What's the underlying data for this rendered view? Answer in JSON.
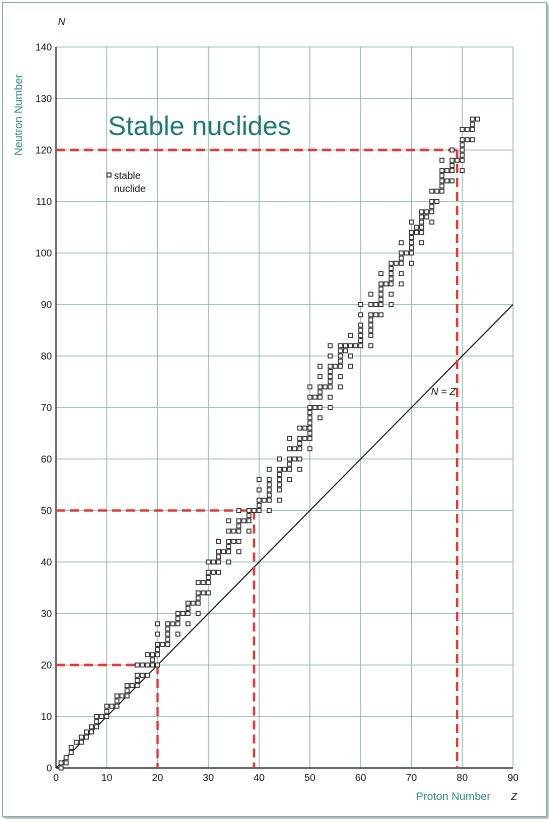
{
  "chart_data": {
    "type": "scatter",
    "title": "Stable nuclides",
    "xlabel": "Proton Number",
    "ylabel": "Neutron Number",
    "x_axis_letter": "Z",
    "y_axis_letter": "N",
    "xlim": [
      0,
      90
    ],
    "ylim": [
      0,
      140
    ],
    "x_ticks": [
      "0",
      "10",
      "20",
      "30",
      "40",
      "50",
      "60",
      "70",
      "80",
      "90"
    ],
    "y_ticks": [
      "0",
      "10",
      "20",
      "30",
      "40",
      "50",
      "60",
      "70",
      "80",
      "90",
      "100",
      "110",
      "120",
      "130",
      "140"
    ],
    "grid": true,
    "legend": {
      "label_line1": "stable",
      "label_line2": "nuclide",
      "marker": "open-square",
      "placement": "top-left"
    },
    "reference_line": {
      "label": "N = Z",
      "from": [
        0,
        0
      ],
      "to": [
        90,
        90
      ]
    },
    "magic_guides": [
      {
        "z": 20,
        "n": 20
      },
      {
        "z": 39,
        "n": 50
      },
      {
        "z": 79,
        "n": 120
      }
    ],
    "accent_colors": {
      "guide": "#e53935",
      "title": "#1d7a73",
      "axis_title": "#2e8b83",
      "grid": "#7fb3ad"
    },
    "series": [
      {
        "marker": "open-square",
        "points": [
          [
            1,
            0
          ],
          [
            1,
            1
          ],
          [
            2,
            1
          ],
          [
            2,
            2
          ],
          [
            3,
            3
          ],
          [
            3,
            4
          ],
          [
            4,
            5
          ],
          [
            5,
            5
          ],
          [
            5,
            6
          ],
          [
            6,
            6
          ],
          [
            6,
            7
          ],
          [
            7,
            7
          ],
          [
            7,
            8
          ],
          [
            8,
            8
          ],
          [
            8,
            9
          ],
          [
            8,
            10
          ],
          [
            9,
            10
          ],
          [
            10,
            10
          ],
          [
            10,
            11
          ],
          [
            10,
            12
          ],
          [
            11,
            12
          ],
          [
            12,
            12
          ],
          [
            12,
            13
          ],
          [
            12,
            14
          ],
          [
            13,
            14
          ],
          [
            14,
            14
          ],
          [
            14,
            15
          ],
          [
            14,
            16
          ],
          [
            15,
            16
          ],
          [
            16,
            16
          ],
          [
            16,
            17
          ],
          [
            16,
            18
          ],
          [
            16,
            20
          ],
          [
            17,
            18
          ],
          [
            17,
            20
          ],
          [
            18,
            18
          ],
          [
            18,
            20
          ],
          [
            18,
            22
          ],
          [
            19,
            20
          ],
          [
            19,
            21
          ],
          [
            19,
            22
          ],
          [
            20,
            20
          ],
          [
            20,
            22
          ],
          [
            20,
            23
          ],
          [
            20,
            24
          ],
          [
            20,
            26
          ],
          [
            20,
            28
          ],
          [
            21,
            24
          ],
          [
            22,
            24
          ],
          [
            22,
            25
          ],
          [
            22,
            26
          ],
          [
            22,
            27
          ],
          [
            22,
            28
          ],
          [
            23,
            28
          ],
          [
            24,
            26
          ],
          [
            24,
            28
          ],
          [
            24,
            29
          ],
          [
            24,
            30
          ],
          [
            25,
            30
          ],
          [
            26,
            28
          ],
          [
            26,
            30
          ],
          [
            26,
            31
          ],
          [
            26,
            32
          ],
          [
            27,
            32
          ],
          [
            28,
            30
          ],
          [
            28,
            32
          ],
          [
            28,
            33
          ],
          [
            28,
            34
          ],
          [
            28,
            36
          ],
          [
            29,
            34
          ],
          [
            29,
            36
          ],
          [
            30,
            34
          ],
          [
            30,
            36
          ],
          [
            30,
            37
          ],
          [
            30,
            38
          ],
          [
            30,
            40
          ],
          [
            31,
            38
          ],
          [
            31,
            40
          ],
          [
            32,
            38
          ],
          [
            32,
            40
          ],
          [
            32,
            41
          ],
          [
            32,
            42
          ],
          [
            32,
            44
          ],
          [
            33,
            42
          ],
          [
            34,
            40
          ],
          [
            34,
            42
          ],
          [
            34,
            43
          ],
          [
            34,
            44
          ],
          [
            34,
            46
          ],
          [
            34,
            48
          ],
          [
            35,
            44
          ],
          [
            35,
            46
          ],
          [
            36,
            42
          ],
          [
            36,
            44
          ],
          [
            36,
            46
          ],
          [
            36,
            47
          ],
          [
            36,
            48
          ],
          [
            36,
            50
          ],
          [
            37,
            48
          ],
          [
            38,
            46
          ],
          [
            38,
            48
          ],
          [
            38,
            49
          ],
          [
            38,
            50
          ],
          [
            39,
            50
          ],
          [
            40,
            50
          ],
          [
            40,
            51
          ],
          [
            40,
            52
          ],
          [
            40,
            54
          ],
          [
            40,
            56
          ],
          [
            41,
            52
          ],
          [
            42,
            50
          ],
          [
            42,
            52
          ],
          [
            42,
            53
          ],
          [
            42,
            54
          ],
          [
            42,
            55
          ],
          [
            42,
            56
          ],
          [
            42,
            58
          ],
          [
            44,
            52
          ],
          [
            44,
            54
          ],
          [
            44,
            55
          ],
          [
            44,
            56
          ],
          [
            44,
            57
          ],
          [
            44,
            58
          ],
          [
            44,
            60
          ],
          [
            45,
            58
          ],
          [
            46,
            56
          ],
          [
            46,
            58
          ],
          [
            46,
            59
          ],
          [
            46,
            60
          ],
          [
            46,
            62
          ],
          [
            46,
            64
          ],
          [
            47,
            60
          ],
          [
            47,
            62
          ],
          [
            48,
            58
          ],
          [
            48,
            60
          ],
          [
            48,
            62
          ],
          [
            48,
            63
          ],
          [
            48,
            64
          ],
          [
            48,
            66
          ],
          [
            49,
            64
          ],
          [
            49,
            66
          ],
          [
            50,
            62
          ],
          [
            50,
            64
          ],
          [
            50,
            65
          ],
          [
            50,
            66
          ],
          [
            50,
            67
          ],
          [
            50,
            68
          ],
          [
            50,
            69
          ],
          [
            50,
            70
          ],
          [
            50,
            72
          ],
          [
            50,
            74
          ],
          [
            51,
            70
          ],
          [
            51,
            72
          ],
          [
            52,
            68
          ],
          [
            52,
            70
          ],
          [
            52,
            72
          ],
          [
            52,
            73
          ],
          [
            52,
            74
          ],
          [
            52,
            76
          ],
          [
            52,
            78
          ],
          [
            53,
            74
          ],
          [
            54,
            70
          ],
          [
            54,
            72
          ],
          [
            54,
            74
          ],
          [
            54,
            75
          ],
          [
            54,
            76
          ],
          [
            54,
            77
          ],
          [
            54,
            78
          ],
          [
            54,
            80
          ],
          [
            54,
            82
          ],
          [
            55,
            78
          ],
          [
            56,
            74
          ],
          [
            56,
            76
          ],
          [
            56,
            78
          ],
          [
            56,
            79
          ],
          [
            56,
            80
          ],
          [
            56,
            81
          ],
          [
            56,
            82
          ],
          [
            57,
            81
          ],
          [
            57,
            82
          ],
          [
            58,
            78
          ],
          [
            58,
            80
          ],
          [
            58,
            82
          ],
          [
            58,
            84
          ],
          [
            59,
            82
          ],
          [
            60,
            82
          ],
          [
            60,
            83
          ],
          [
            60,
            84
          ],
          [
            60,
            85
          ],
          [
            60,
            86
          ],
          [
            60,
            88
          ],
          [
            60,
            90
          ],
          [
            62,
            82
          ],
          [
            62,
            84
          ],
          [
            62,
            85
          ],
          [
            62,
            86
          ],
          [
            62,
            87
          ],
          [
            62,
            88
          ],
          [
            62,
            90
          ],
          [
            62,
            92
          ],
          [
            63,
            88
          ],
          [
            63,
            90
          ],
          [
            64,
            88
          ],
          [
            64,
            90
          ],
          [
            64,
            91
          ],
          [
            64,
            92
          ],
          [
            64,
            93
          ],
          [
            64,
            94
          ],
          [
            64,
            96
          ],
          [
            65,
            94
          ],
          [
            66,
            90
          ],
          [
            66,
            92
          ],
          [
            66,
            94
          ],
          [
            66,
            95
          ],
          [
            66,
            96
          ],
          [
            66,
            97
          ],
          [
            66,
            98
          ],
          [
            67,
            98
          ],
          [
            68,
            94
          ],
          [
            68,
            96
          ],
          [
            68,
            98
          ],
          [
            68,
            99
          ],
          [
            68,
            100
          ],
          [
            68,
            102
          ],
          [
            69,
            100
          ],
          [
            70,
            98
          ],
          [
            70,
            100
          ],
          [
            70,
            101
          ],
          [
            70,
            102
          ],
          [
            70,
            103
          ],
          [
            70,
            104
          ],
          [
            70,
            106
          ],
          [
            71,
            104
          ],
          [
            71,
            105
          ],
          [
            72,
            102
          ],
          [
            72,
            104
          ],
          [
            72,
            105
          ],
          [
            72,
            106
          ],
          [
            72,
            107
          ],
          [
            72,
            108
          ],
          [
            73,
            107
          ],
          [
            73,
            108
          ],
          [
            74,
            106
          ],
          [
            74,
            108
          ],
          [
            74,
            109
          ],
          [
            74,
            110
          ],
          [
            74,
            112
          ],
          [
            75,
            110
          ],
          [
            75,
            112
          ],
          [
            76,
            112
          ],
          [
            76,
            113
          ],
          [
            76,
            114
          ],
          [
            76,
            115
          ],
          [
            76,
            116
          ],
          [
            76,
            118
          ],
          [
            77,
            114
          ],
          [
            77,
            116
          ],
          [
            78,
            114
          ],
          [
            78,
            116
          ],
          [
            78,
            117
          ],
          [
            78,
            118
          ],
          [
            78,
            120
          ],
          [
            79,
            118
          ],
          [
            80,
            116
          ],
          [
            80,
            118
          ],
          [
            80,
            119
          ],
          [
            80,
            120
          ],
          [
            80,
            121
          ],
          [
            80,
            122
          ],
          [
            80,
            124
          ],
          [
            81,
            122
          ],
          [
            81,
            124
          ],
          [
            82,
            122
          ],
          [
            82,
            124
          ],
          [
            82,
            125
          ],
          [
            82,
            126
          ],
          [
            83,
            126
          ]
        ]
      }
    ]
  }
}
